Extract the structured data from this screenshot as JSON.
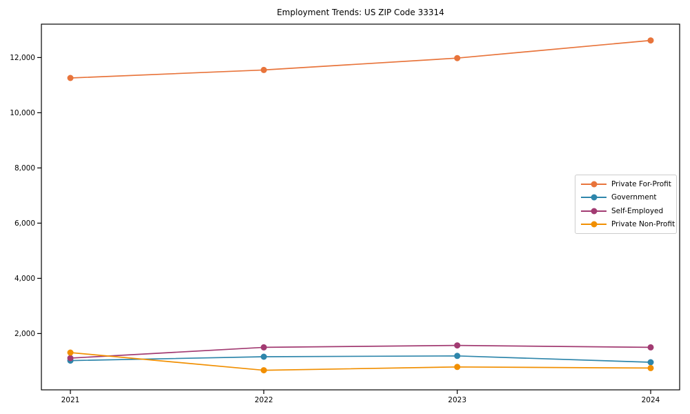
{
  "chart_data": {
    "type": "line",
    "title": "Employment Trends: US ZIP Code 33314",
    "x": [
      2021,
      2022,
      2023,
      2024
    ],
    "x_labels": [
      "2021",
      "2022",
      "2023",
      "2024"
    ],
    "series": [
      {
        "name": "Private For-Profit",
        "color": "#E8743B",
        "marker": "circle",
        "values": [
          11260,
          11550,
          11980,
          12620
        ]
      },
      {
        "name": "Government",
        "color": "#2E86AB",
        "marker": "circle",
        "values": [
          1020,
          1160,
          1190,
          960
        ]
      },
      {
        "name": "Self-Employed",
        "color": "#A23B72",
        "marker": "circle",
        "values": [
          1110,
          1500,
          1570,
          1500
        ]
      },
      {
        "name": "Private Non-Profit",
        "color": "#F18F01",
        "marker": "circle",
        "values": [
          1310,
          670,
          790,
          750
        ]
      }
    ],
    "yticks": [
      2000,
      4000,
      6000,
      8000,
      10000,
      12000
    ],
    "ytick_labels": [
      "2,000",
      "4,000",
      "6,000",
      "8,000",
      "10,000",
      "12,000"
    ],
    "ylim": [
      -40,
      13210
    ],
    "xlabel": "",
    "ylabel": "",
    "grid": false,
    "legend_position": "right-middle",
    "frame_color": "#000000",
    "background": "#ffffff"
  }
}
